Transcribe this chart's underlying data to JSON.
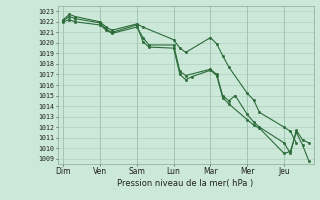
{
  "xlabel": "Pression niveau de la mer( hPa )",
  "bg_color": "#cbe8d8",
  "grid_color": "#a8ccb8",
  "line_color": "#2d6b3a",
  "ylim": [
    1008.5,
    1023.5
  ],
  "yticks": [
    1009,
    1010,
    1011,
    1012,
    1013,
    1014,
    1015,
    1016,
    1017,
    1018,
    1019,
    1020,
    1021,
    1022,
    1023
  ],
  "day_labels": [
    "Dim",
    "Ven",
    "Sam",
    "Lun",
    "Mar",
    "Mer",
    "Jeu"
  ],
  "day_positions": [
    0,
    1,
    2,
    3,
    4,
    5,
    6
  ],
  "xlim": [
    -0.15,
    6.8
  ],
  "line1_x": [
    0.0,
    0.17,
    0.33,
    1.0,
    1.17,
    1.33,
    2.0,
    2.17,
    3.0,
    3.17,
    3.33,
    4.0,
    4.17,
    4.33,
    4.5,
    5.0,
    5.17,
    5.33,
    6.0,
    6.17,
    6.33
  ],
  "line1_y": [
    1022.2,
    1022.7,
    1022.5,
    1022.0,
    1021.5,
    1021.2,
    1021.8,
    1021.5,
    1020.3,
    1019.5,
    1019.1,
    1020.5,
    1019.9,
    1018.8,
    1017.7,
    1015.2,
    1014.6,
    1013.4,
    1012.0,
    1011.6,
    1010.5
  ],
  "line2_x": [
    0.0,
    0.17,
    0.33,
    1.0,
    1.17,
    1.33,
    2.0,
    2.17,
    2.33,
    3.0,
    3.17,
    3.33,
    4.0,
    4.17,
    4.33,
    4.5,
    4.67,
    5.0,
    5.17,
    5.33,
    6.0,
    6.17,
    6.33,
    6.5,
    6.67
  ],
  "line2_y": [
    1022.0,
    1022.2,
    1022.0,
    1021.7,
    1021.2,
    1020.9,
    1021.5,
    1020.5,
    1019.8,
    1019.8,
    1017.3,
    1016.9,
    1017.5,
    1017.0,
    1015.0,
    1014.5,
    1015.0,
    1013.2,
    1012.5,
    1012.0,
    1010.5,
    1009.5,
    1011.7,
    1010.8,
    1010.5
  ],
  "line3_x": [
    0.0,
    0.17,
    0.33,
    1.0,
    1.17,
    1.33,
    2.0,
    2.17,
    2.33,
    3.0,
    3.17,
    3.33,
    3.5,
    4.0,
    4.17,
    4.33,
    4.5,
    5.0,
    5.17,
    5.33,
    6.0,
    6.17,
    6.33,
    6.5,
    6.67
  ],
  "line3_y": [
    1022.1,
    1022.5,
    1022.3,
    1021.9,
    1021.3,
    1021.0,
    1021.7,
    1020.1,
    1019.6,
    1019.5,
    1017.0,
    1016.5,
    1016.8,
    1017.4,
    1016.9,
    1014.8,
    1014.2,
    1012.7,
    1012.2,
    1011.9,
    1009.5,
    1009.7,
    1011.5,
    1010.3,
    1008.8
  ]
}
